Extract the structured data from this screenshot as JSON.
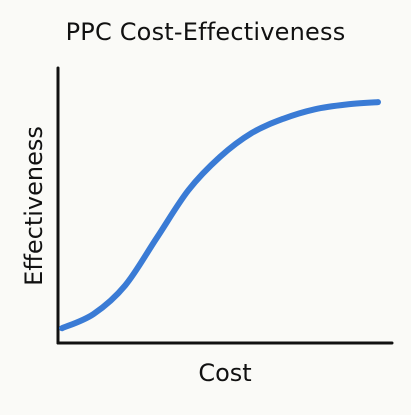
{
  "chart_data": {
    "type": "line",
    "title": "PPC Cost-Effectiveness",
    "xlabel": "Cost",
    "ylabel": "Effectiveness",
    "grid": false,
    "legend": "none",
    "series": [
      {
        "color": "#3a7bd5",
        "x": [
          0,
          0.1,
          0.2,
          0.3,
          0.4,
          0.5,
          0.6,
          0.7,
          0.8,
          0.9,
          1.0
        ],
        "y": [
          0.02,
          0.08,
          0.2,
          0.4,
          0.6,
          0.74,
          0.84,
          0.9,
          0.94,
          0.96,
          0.97
        ]
      }
    ],
    "xlim": [
      0,
      1
    ],
    "ylim": [
      0,
      1
    ]
  },
  "colors": {
    "background": "#fafaf7",
    "axis": "#111111",
    "line": "#3a7bd5"
  }
}
